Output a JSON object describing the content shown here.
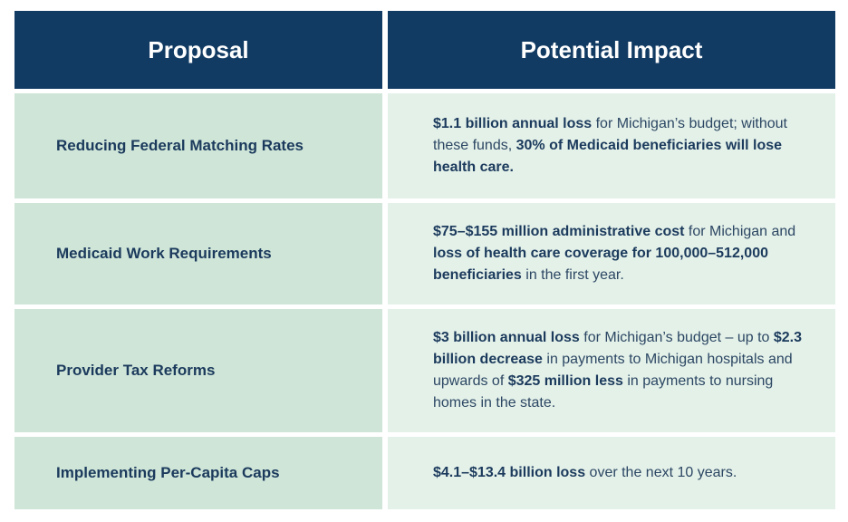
{
  "header": {
    "proposal": "Proposal",
    "impact": "Potential Impact"
  },
  "rows": [
    {
      "proposal": "Reducing Federal Matching Rates",
      "impact": [
        {
          "text": "$1.1 billion annual loss",
          "bold": true
        },
        {
          "text": " for Michigan’s budget; without these funds, ",
          "bold": false
        },
        {
          "text": "30% of Medicaid beneficiaries will lose health care.",
          "bold": true
        }
      ]
    },
    {
      "proposal": "Medicaid Work Requirements",
      "impact": [
        {
          "text": "$75–$155 million administrative cost",
          "bold": true
        },
        {
          "text": " for Michigan and ",
          "bold": false
        },
        {
          "text": "loss of health care coverage for 100,000–512,000 beneficiaries",
          "bold": true
        },
        {
          "text": " in the first year.",
          "bold": false
        }
      ]
    },
    {
      "proposal": "Provider Tax Reforms",
      "impact": [
        {
          "text": "$3 billion annual loss",
          "bold": true
        },
        {
          "text": " for Michigan’s budget – up to ",
          "bold": false
        },
        {
          "text": "$2.3 billion decrease",
          "bold": true
        },
        {
          "text": " in payments to Michigan hospitals and upwards of ",
          "bold": false
        },
        {
          "text": "$325 million less",
          "bold": true
        },
        {
          "text": " in payments to nursing homes in the state.",
          "bold": false
        }
      ]
    },
    {
      "proposal": "Implementing Per-Capita Caps",
      "impact": [
        {
          "text": "$4.1–$13.4 billion loss",
          "bold": true
        },
        {
          "text": " over the next 10 years.",
          "bold": false
        }
      ]
    }
  ]
}
